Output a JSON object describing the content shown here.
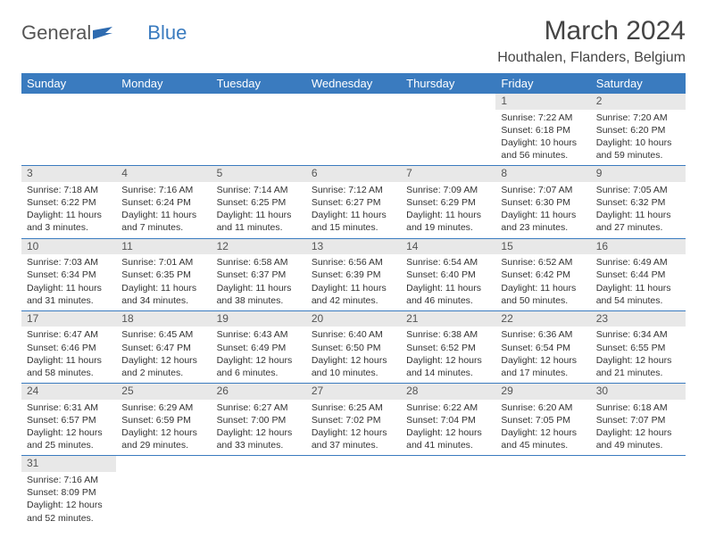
{
  "logo": {
    "text1": "General",
    "text2": "Blue"
  },
  "title": "March 2024",
  "location": "Houthalen, Flanders, Belgium",
  "colors": {
    "header_bg": "#3a7bbf",
    "header_text": "#ffffff",
    "daynum_bg": "#e8e8e8",
    "border": "#3a7bbf",
    "body_text": "#333333",
    "logo_gray": "#555555",
    "logo_blue": "#3a7bbf"
  },
  "weekdays": [
    "Sunday",
    "Monday",
    "Tuesday",
    "Wednesday",
    "Thursday",
    "Friday",
    "Saturday"
  ],
  "weeks": [
    [
      null,
      null,
      null,
      null,
      null,
      {
        "n": "1",
        "sr": "Sunrise: 7:22 AM",
        "ss": "Sunset: 6:18 PM",
        "dl1": "Daylight: 10 hours",
        "dl2": "and 56 minutes."
      },
      {
        "n": "2",
        "sr": "Sunrise: 7:20 AM",
        "ss": "Sunset: 6:20 PM",
        "dl1": "Daylight: 10 hours",
        "dl2": "and 59 minutes."
      }
    ],
    [
      {
        "n": "3",
        "sr": "Sunrise: 7:18 AM",
        "ss": "Sunset: 6:22 PM",
        "dl1": "Daylight: 11 hours",
        "dl2": "and 3 minutes."
      },
      {
        "n": "4",
        "sr": "Sunrise: 7:16 AM",
        "ss": "Sunset: 6:24 PM",
        "dl1": "Daylight: 11 hours",
        "dl2": "and 7 minutes."
      },
      {
        "n": "5",
        "sr": "Sunrise: 7:14 AM",
        "ss": "Sunset: 6:25 PM",
        "dl1": "Daylight: 11 hours",
        "dl2": "and 11 minutes."
      },
      {
        "n": "6",
        "sr": "Sunrise: 7:12 AM",
        "ss": "Sunset: 6:27 PM",
        "dl1": "Daylight: 11 hours",
        "dl2": "and 15 minutes."
      },
      {
        "n": "7",
        "sr": "Sunrise: 7:09 AM",
        "ss": "Sunset: 6:29 PM",
        "dl1": "Daylight: 11 hours",
        "dl2": "and 19 minutes."
      },
      {
        "n": "8",
        "sr": "Sunrise: 7:07 AM",
        "ss": "Sunset: 6:30 PM",
        "dl1": "Daylight: 11 hours",
        "dl2": "and 23 minutes."
      },
      {
        "n": "9",
        "sr": "Sunrise: 7:05 AM",
        "ss": "Sunset: 6:32 PM",
        "dl1": "Daylight: 11 hours",
        "dl2": "and 27 minutes."
      }
    ],
    [
      {
        "n": "10",
        "sr": "Sunrise: 7:03 AM",
        "ss": "Sunset: 6:34 PM",
        "dl1": "Daylight: 11 hours",
        "dl2": "and 31 minutes."
      },
      {
        "n": "11",
        "sr": "Sunrise: 7:01 AM",
        "ss": "Sunset: 6:35 PM",
        "dl1": "Daylight: 11 hours",
        "dl2": "and 34 minutes."
      },
      {
        "n": "12",
        "sr": "Sunrise: 6:58 AM",
        "ss": "Sunset: 6:37 PM",
        "dl1": "Daylight: 11 hours",
        "dl2": "and 38 minutes."
      },
      {
        "n": "13",
        "sr": "Sunrise: 6:56 AM",
        "ss": "Sunset: 6:39 PM",
        "dl1": "Daylight: 11 hours",
        "dl2": "and 42 minutes."
      },
      {
        "n": "14",
        "sr": "Sunrise: 6:54 AM",
        "ss": "Sunset: 6:40 PM",
        "dl1": "Daylight: 11 hours",
        "dl2": "and 46 minutes."
      },
      {
        "n": "15",
        "sr": "Sunrise: 6:52 AM",
        "ss": "Sunset: 6:42 PM",
        "dl1": "Daylight: 11 hours",
        "dl2": "and 50 minutes."
      },
      {
        "n": "16",
        "sr": "Sunrise: 6:49 AM",
        "ss": "Sunset: 6:44 PM",
        "dl1": "Daylight: 11 hours",
        "dl2": "and 54 minutes."
      }
    ],
    [
      {
        "n": "17",
        "sr": "Sunrise: 6:47 AM",
        "ss": "Sunset: 6:46 PM",
        "dl1": "Daylight: 11 hours",
        "dl2": "and 58 minutes."
      },
      {
        "n": "18",
        "sr": "Sunrise: 6:45 AM",
        "ss": "Sunset: 6:47 PM",
        "dl1": "Daylight: 12 hours",
        "dl2": "and 2 minutes."
      },
      {
        "n": "19",
        "sr": "Sunrise: 6:43 AM",
        "ss": "Sunset: 6:49 PM",
        "dl1": "Daylight: 12 hours",
        "dl2": "and 6 minutes."
      },
      {
        "n": "20",
        "sr": "Sunrise: 6:40 AM",
        "ss": "Sunset: 6:50 PM",
        "dl1": "Daylight: 12 hours",
        "dl2": "and 10 minutes."
      },
      {
        "n": "21",
        "sr": "Sunrise: 6:38 AM",
        "ss": "Sunset: 6:52 PM",
        "dl1": "Daylight: 12 hours",
        "dl2": "and 14 minutes."
      },
      {
        "n": "22",
        "sr": "Sunrise: 6:36 AM",
        "ss": "Sunset: 6:54 PM",
        "dl1": "Daylight: 12 hours",
        "dl2": "and 17 minutes."
      },
      {
        "n": "23",
        "sr": "Sunrise: 6:34 AM",
        "ss": "Sunset: 6:55 PM",
        "dl1": "Daylight: 12 hours",
        "dl2": "and 21 minutes."
      }
    ],
    [
      {
        "n": "24",
        "sr": "Sunrise: 6:31 AM",
        "ss": "Sunset: 6:57 PM",
        "dl1": "Daylight: 12 hours",
        "dl2": "and 25 minutes."
      },
      {
        "n": "25",
        "sr": "Sunrise: 6:29 AM",
        "ss": "Sunset: 6:59 PM",
        "dl1": "Daylight: 12 hours",
        "dl2": "and 29 minutes."
      },
      {
        "n": "26",
        "sr": "Sunrise: 6:27 AM",
        "ss": "Sunset: 7:00 PM",
        "dl1": "Daylight: 12 hours",
        "dl2": "and 33 minutes."
      },
      {
        "n": "27",
        "sr": "Sunrise: 6:25 AM",
        "ss": "Sunset: 7:02 PM",
        "dl1": "Daylight: 12 hours",
        "dl2": "and 37 minutes."
      },
      {
        "n": "28",
        "sr": "Sunrise: 6:22 AM",
        "ss": "Sunset: 7:04 PM",
        "dl1": "Daylight: 12 hours",
        "dl2": "and 41 minutes."
      },
      {
        "n": "29",
        "sr": "Sunrise: 6:20 AM",
        "ss": "Sunset: 7:05 PM",
        "dl1": "Daylight: 12 hours",
        "dl2": "and 45 minutes."
      },
      {
        "n": "30",
        "sr": "Sunrise: 6:18 AM",
        "ss": "Sunset: 7:07 PM",
        "dl1": "Daylight: 12 hours",
        "dl2": "and 49 minutes."
      }
    ],
    [
      {
        "n": "31",
        "sr": "Sunrise: 7:16 AM",
        "ss": "Sunset: 8:09 PM",
        "dl1": "Daylight: 12 hours",
        "dl2": "and 52 minutes."
      },
      null,
      null,
      null,
      null,
      null,
      null
    ]
  ]
}
